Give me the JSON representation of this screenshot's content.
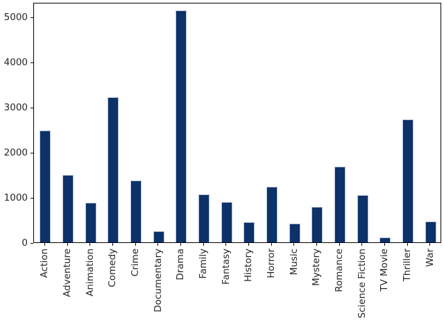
{
  "figure": {
    "background": "#ffffff",
    "bar_color": "#0d3169",
    "bar_edge_color": "#b8c1d6",
    "spine_color": "#000000",
    "text_color": "#262626"
  },
  "chart_data": {
    "type": "bar",
    "title": "",
    "xlabel": "",
    "ylabel": "",
    "categories": [
      "Action",
      "Adventure",
      "Animation",
      "Comedy",
      "Crime",
      "Documentary",
      "Drama",
      "Family",
      "Fantasy",
      "History",
      "Horror",
      "Music",
      "Mystery",
      "Romance",
      "Science Fiction",
      "TV Movie",
      "Thriller",
      "War"
    ],
    "values": [
      2480,
      1500,
      880,
      3220,
      1370,
      240,
      5140,
      1060,
      900,
      440,
      1230,
      410,
      780,
      1680,
      1050,
      110,
      2730,
      460
    ],
    "y_ticks": [
      0,
      1000,
      2000,
      3000,
      4000,
      5000
    ],
    "ylim": [
      0,
      5330
    ],
    "bar_width_fraction": 0.5,
    "x_tick_rotation": 90,
    "grid": false,
    "legend": null,
    "orientation": "vertical"
  }
}
